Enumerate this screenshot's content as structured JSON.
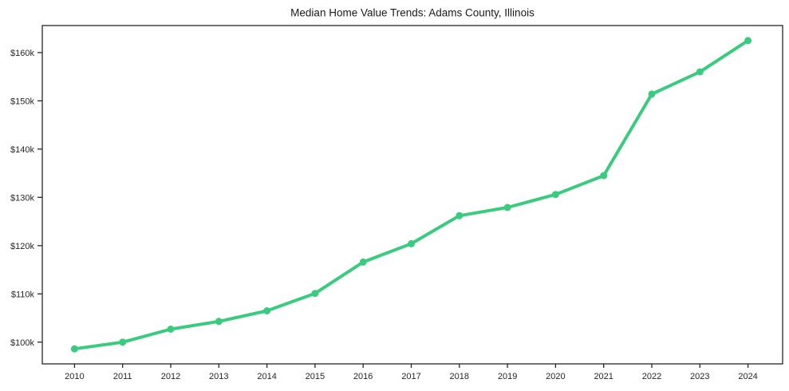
{
  "page": {
    "background": "#ffffff"
  },
  "chart_data": {
    "type": "line",
    "title": "Median Home Value Trends: Adams County, Illinois",
    "xlabel": "",
    "ylabel": "",
    "grid": false,
    "legend": null,
    "line_color": "#3bcb7e",
    "marker_color": "#3bcb7e",
    "marker_shape": "circle",
    "axis_color": "#262626",
    "xlim": [
      2009.33,
      2024.72
    ],
    "ylim": [
      95500,
      165600
    ],
    "x": [
      2010,
      2011,
      2012,
      2013,
      2014,
      2015,
      2016,
      2017,
      2018,
      2019,
      2020,
      2021,
      2022,
      2023,
      2024
    ],
    "x_tick_labels": [
      "2010",
      "2011",
      "2012",
      "2013",
      "2014",
      "2015",
      "2016",
      "2017",
      "2018",
      "2019",
      "2020",
      "2021",
      "2022",
      "2023",
      "2024"
    ],
    "series": [
      {
        "name": "Median Home Value",
        "values": [
          98600,
          100000,
          102700,
          104300,
          106500,
          110100,
          116600,
          120400,
          126200,
          127900,
          130600,
          134500,
          151400,
          156000,
          162500
        ]
      }
    ],
    "y_ticks": [
      {
        "value": 100000,
        "label": "$100k"
      },
      {
        "value": 110000,
        "label": "$110k"
      },
      {
        "value": 120000,
        "label": "$120k"
      },
      {
        "value": 130000,
        "label": "$130k"
      },
      {
        "value": 140000,
        "label": "$140k"
      },
      {
        "value": 150000,
        "label": "$150k"
      },
      {
        "value": 160000,
        "label": "$160k"
      }
    ]
  }
}
